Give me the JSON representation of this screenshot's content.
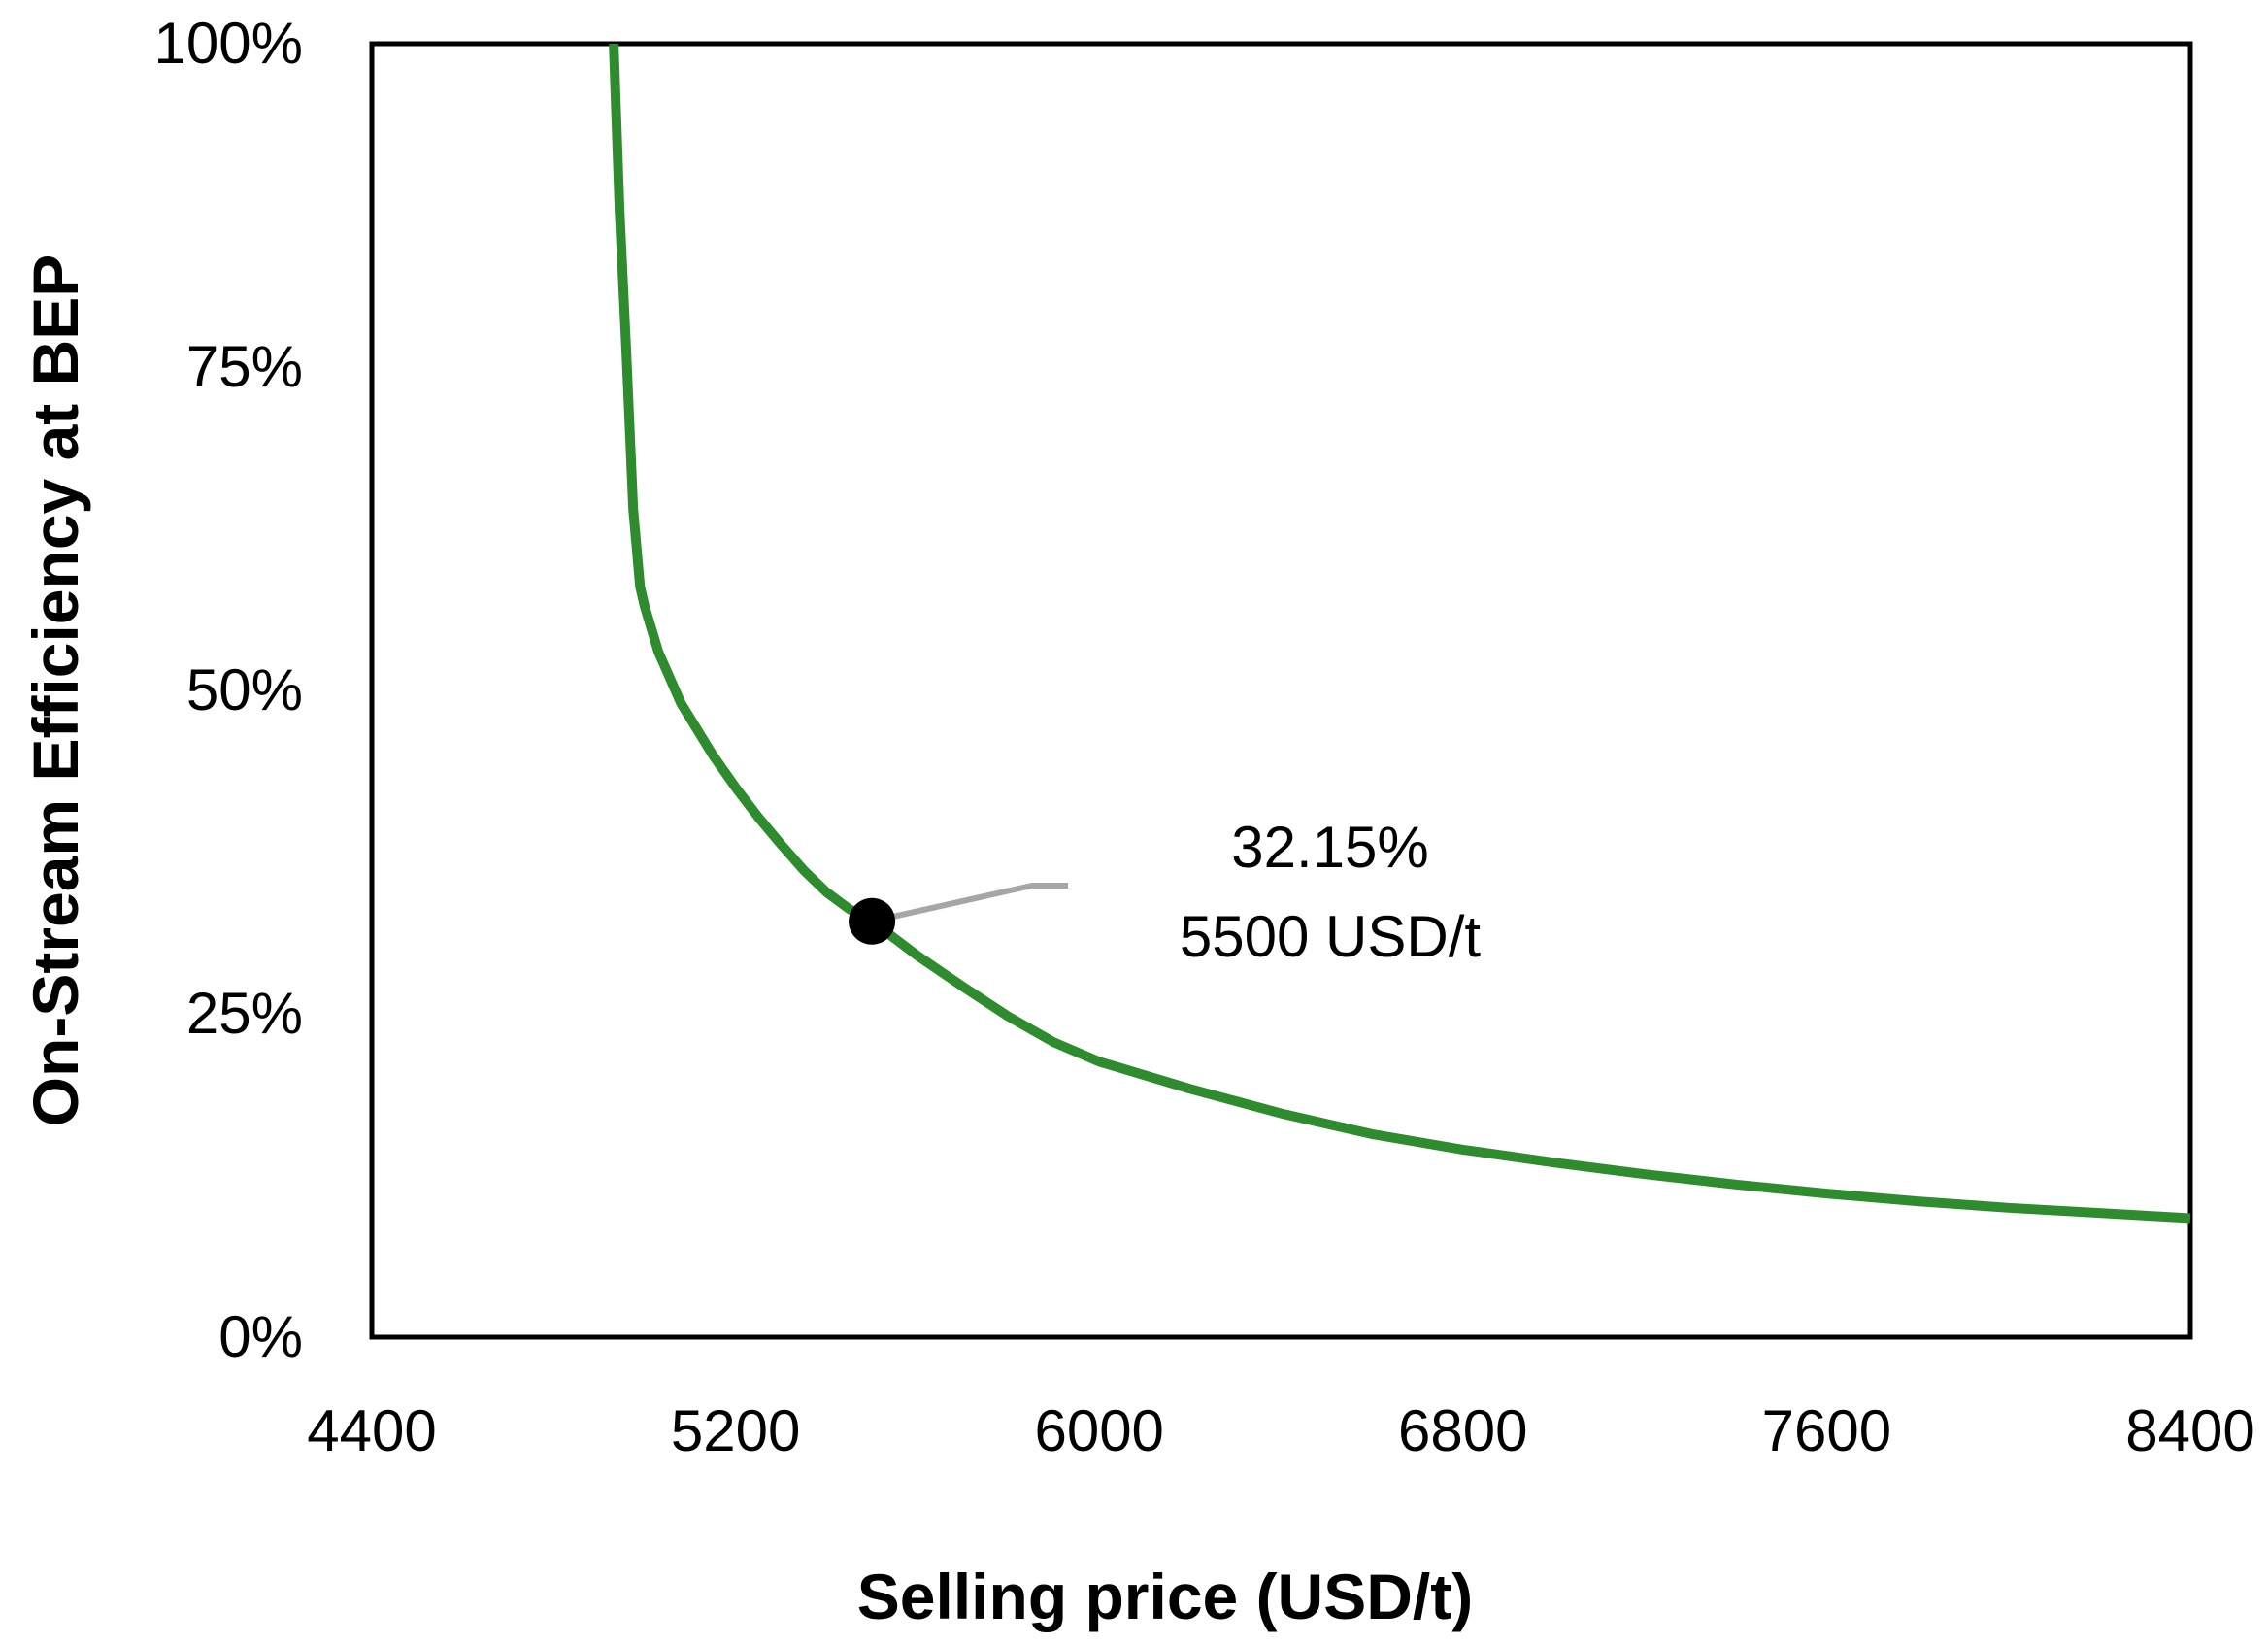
{
  "chart_data": {
    "type": "line",
    "title": "",
    "xlabel": "Selling price (USD/t)",
    "ylabel": "On-Stream Efficiency at BEP",
    "xlim": [
      4400,
      8400
    ],
    "ylim": [
      0,
      100
    ],
    "x_ticks": [
      4400,
      5200,
      6000,
      6800,
      7600,
      8400
    ],
    "y_ticks": [
      0,
      25,
      50,
      75,
      100
    ],
    "y_tick_labels": [
      "0%",
      "25%",
      "50%",
      "75%",
      "100%"
    ],
    "grid": false,
    "legend": "none",
    "series": [
      {
        "color": "#2e8b2e",
        "points": [
          [
            4932,
            100
          ],
          [
            4945,
            87
          ],
          [
            4960,
            76
          ],
          [
            4975,
            64
          ],
          [
            4990,
            58
          ],
          [
            5000,
            56.5
          ],
          [
            5030,
            53
          ],
          [
            5080,
            49
          ],
          [
            5150,
            45
          ],
          [
            5200,
            42.5
          ],
          [
            5250,
            40.2
          ],
          [
            5300,
            38.1
          ],
          [
            5350,
            36.1
          ],
          [
            5400,
            34.4
          ],
          [
            5450,
            33.1
          ],
          [
            5500,
            32.15
          ],
          [
            5600,
            29.5
          ],
          [
            5700,
            27.1
          ],
          [
            5800,
            24.8
          ],
          [
            5900,
            22.8
          ],
          [
            6000,
            21.3
          ],
          [
            6200,
            19.2
          ],
          [
            6400,
            17.3
          ],
          [
            6600,
            15.7
          ],
          [
            6800,
            14.5
          ],
          [
            7000,
            13.5
          ],
          [
            7200,
            12.6
          ],
          [
            7400,
            11.8
          ],
          [
            7600,
            11.1
          ],
          [
            7800,
            10.5
          ],
          [
            8000,
            10.0
          ],
          [
            8200,
            9.6
          ],
          [
            8400,
            9.2
          ]
        ]
      }
    ],
    "highlight": {
      "x": 5500,
      "y": 32.15,
      "marker_color": "#000000",
      "leader_color": "#a6a6a6",
      "label_line1": "32.15%",
      "label_line2": "5500 USD/t"
    }
  }
}
